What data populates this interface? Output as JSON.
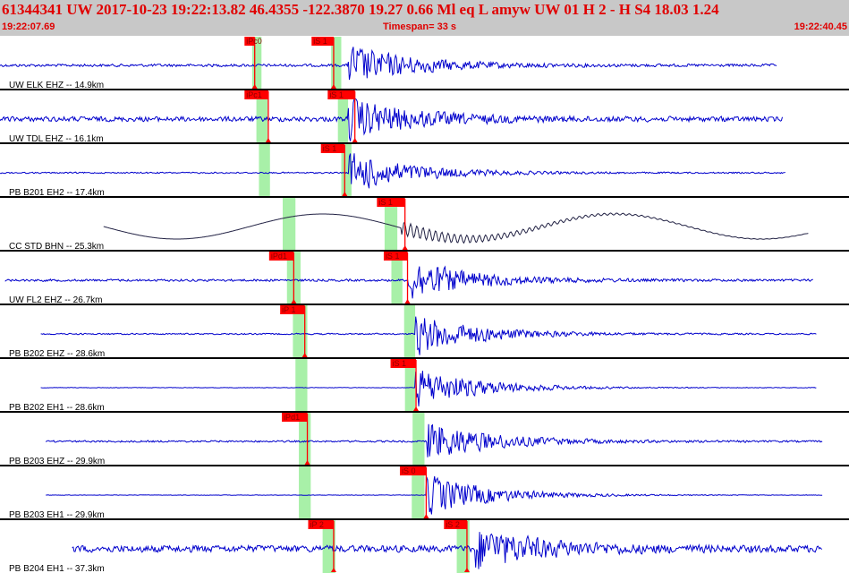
{
  "header": {
    "event_line": "61344341 UW 2017-10-23 19:22:13.82   46.4355 -122.3870  19.27  0.66 Ml  eq  L amyw    UW 01  H   2  -  H S4   18.03  1.24",
    "start_time": "19:22:07.69",
    "timespan": "Timespan=  33 s",
    "end_time": "19:22:40.45"
  },
  "colors": {
    "background": "#ffffff",
    "header_bg": "#c8c8c8",
    "header_text": "#e00000",
    "trace": "#0000cc",
    "trace_alt": "#222244",
    "pick_flag": "#ff0000",
    "pick_line": "#ff0000",
    "window": "#a8f0a8",
    "separator": "#000000"
  },
  "chart_data": {
    "type": "seismogram",
    "timespan_s": 33,
    "start_time": "19:22:07.69",
    "end_time": "19:22:40.45",
    "traces": [
      {
        "label": "UW ELK EHZ -- 14.9km",
        "x_start": 0.0,
        "x_end": 0.915,
        "amp": 0.12,
        "color": "blue",
        "s_time": 0.41,
        "p_window": [
          0.297,
          0.308
        ],
        "s_window": [
          0.39,
          0.402
        ],
        "picks": [
          {
            "label": "iPc0",
            "time": 0.3,
            "flag_at": 0.288
          },
          {
            "label": "iS 1",
            "time": 0.393,
            "flag_at": 0.367
          }
        ]
      },
      {
        "label": "UW TDL EHZ -- 16.1km",
        "x_start": 0.0,
        "x_end": 0.922,
        "amp": 0.22,
        "color": "blue",
        "s_time": 0.41,
        "p_window": [
          0.302,
          0.315
        ],
        "s_window": [
          0.398,
          0.41
        ],
        "picks": [
          {
            "label": "iPc1",
            "time": 0.316,
            "flag_at": 0.288
          },
          {
            "label": "iS 1",
            "time": 0.418,
            "flag_at": 0.386
          }
        ]
      },
      {
        "label": "PB B201 EH2 -- 17.4km",
        "x_start": 0.0,
        "x_end": 0.925,
        "amp": 0.06,
        "color": "blue",
        "s_time": 0.411,
        "p_window": [
          0.305,
          0.318
        ],
        "s_window": [
          0.402,
          0.414
        ],
        "picks": [
          {
            "label": "iS 1",
            "time": 0.406,
            "flag_at": 0.378
          }
        ]
      },
      {
        "label": "CC STD BHN -- 25.3km",
        "x_start": 0.122,
        "x_end": 0.953,
        "amp": 0.08,
        "color": "dark",
        "s_time": 0.473,
        "p_window": [
          0.333,
          0.348
        ],
        "s_window": [
          0.453,
          0.468
        ],
        "picks": [
          {
            "label": "iS 1",
            "time": 0.477,
            "flag_at": 0.444
          }
        ]
      },
      {
        "label": "UW FL2 EHZ -- 26.7km",
        "x_start": 0.006,
        "x_end": 0.958,
        "amp": 0.1,
        "color": "blue",
        "s_time": 0.481,
        "p_window": [
          0.338,
          0.354
        ],
        "s_window": [
          0.461,
          0.474
        ],
        "picks": [
          {
            "label": "iPd1",
            "time": 0.346,
            "flag_at": 0.317
          },
          {
            "label": "iS 1",
            "time": 0.48,
            "flag_at": 0.452
          }
        ]
      },
      {
        "label": "PB B202 EHZ -- 28.6km",
        "x_start": 0.048,
        "x_end": 0.962,
        "amp": 0.06,
        "color": "blue",
        "s_time": 0.489,
        "p_window": [
          0.345,
          0.362
        ],
        "s_window": [
          0.476,
          0.489
        ],
        "picks": [
          {
            "label": "iP 1",
            "time": 0.359,
            "flag_at": 0.33
          }
        ]
      },
      {
        "label": "PB B202 EH1 -- 28.6km",
        "x_start": 0.048,
        "x_end": 0.962,
        "amp": 0.02,
        "color": "blue",
        "s_time": 0.489,
        "p_window": [
          0.348,
          0.362
        ],
        "s_window": [
          0.477,
          0.489
        ],
        "picks": [
          {
            "label": "iS 1",
            "time": 0.49,
            "flag_at": 0.46
          }
        ]
      },
      {
        "label": "PB B203 EHZ -- 29.9km",
        "x_start": 0.054,
        "x_end": 0.969,
        "amp": 0.08,
        "color": "blue",
        "s_time": 0.502,
        "p_window": [
          0.352,
          0.366
        ],
        "s_window": [
          0.486,
          0.5
        ],
        "picks": [
          {
            "label": "iPd1",
            "time": 0.362,
            "flag_at": 0.332
          }
        ]
      },
      {
        "label": "PB B203 EH1 -- 29.9km",
        "x_start": 0.054,
        "x_end": 0.969,
        "amp": 0.02,
        "color": "blue",
        "s_time": 0.502,
        "p_window": [
          0.352,
          0.366
        ],
        "s_window": [
          0.485,
          0.5
        ],
        "picks": [
          {
            "label": "iS 0",
            "time": 0.502,
            "flag_at": 0.471
          }
        ]
      },
      {
        "label": "PB B204 EH1 -- 37.3km",
        "x_start": 0.085,
        "x_end": 0.969,
        "amp": 0.3,
        "color": "blue",
        "s_time": 0.56,
        "p_window": [
          0.38,
          0.395
        ],
        "s_window": [
          0.538,
          0.553
        ],
        "picks": [
          {
            "label": "iP 2",
            "time": 0.393,
            "flag_at": 0.363
          },
          {
            "label": "iS 2",
            "time": 0.55,
            "flag_at": 0.523
          }
        ]
      }
    ]
  }
}
